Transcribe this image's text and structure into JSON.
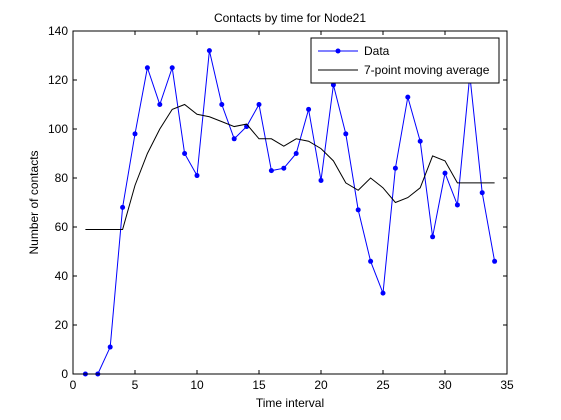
{
  "chart_data": {
    "type": "line",
    "title": "Contacts by time for Node21",
    "xlabel": "Time interval",
    "ylabel": "Number of contacts",
    "xlim": [
      0,
      35
    ],
    "ylim": [
      0,
      140
    ],
    "xticks": [
      0,
      5,
      10,
      15,
      20,
      25,
      30,
      35
    ],
    "yticks": [
      0,
      20,
      40,
      60,
      80,
      100,
      120,
      140
    ],
    "grid": false,
    "legend_position": "top-right",
    "series": [
      {
        "name": "Data",
        "color": "#0000ff",
        "marker": "dot",
        "x": [
          1,
          2,
          3,
          4,
          5,
          6,
          7,
          8,
          9,
          10,
          11,
          12,
          13,
          14,
          15,
          16,
          17,
          18,
          19,
          20,
          21,
          22,
          23,
          24,
          25,
          26,
          27,
          28,
          29,
          30,
          31,
          32,
          33,
          34
        ],
        "y": [
          0,
          0,
          11,
          68,
          98,
          125,
          110,
          125,
          90,
          81,
          132,
          110,
          96,
          101,
          110,
          83,
          84,
          90,
          108,
          79,
          118,
          98,
          67,
          46,
          33,
          84,
          113,
          95,
          56,
          82,
          69,
          122,
          74,
          46
        ]
      },
      {
        "name": "7-point moving average",
        "color": "#000000",
        "marker": "none",
        "x": [
          1,
          2,
          3,
          4,
          5,
          6,
          7,
          8,
          9,
          10,
          11,
          12,
          13,
          14,
          15,
          16,
          17,
          18,
          19,
          20,
          21,
          22,
          23,
          24,
          25,
          26,
          27,
          28,
          29,
          30,
          31,
          32,
          33,
          34
        ],
        "y": [
          59,
          59,
          59,
          59,
          77,
          90,
          100,
          108,
          110,
          106,
          105,
          103,
          101,
          102,
          96,
          96,
          93,
          96,
          95,
          92,
          87,
          78,
          75,
          80,
          76,
          70,
          72,
          76,
          89,
          87,
          78,
          78,
          78,
          78
        ]
      }
    ]
  }
}
